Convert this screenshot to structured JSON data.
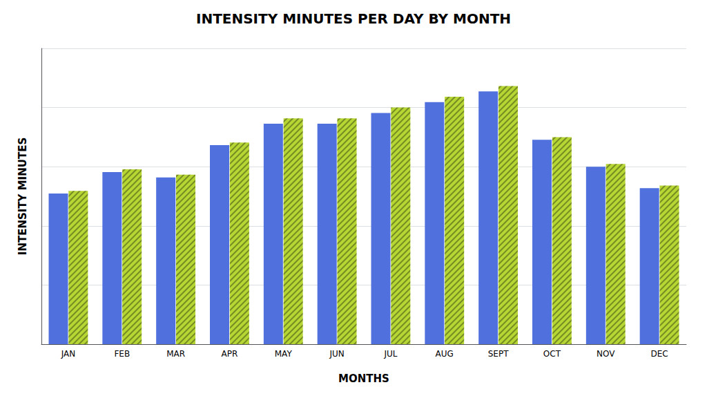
{
  "chart_data": {
    "type": "bar",
    "title": "INTENSITY MINUTES PER DAY BY MONTH",
    "xlabel": "MONTHS",
    "ylabel": "INTENSITY MINUTES",
    "categories": [
      "JAN",
      "FEB",
      "MAR",
      "APR",
      "MAY",
      "JUN",
      "JUL",
      "AUG",
      "SEPT",
      "OCT",
      "NOV",
      "DEC"
    ],
    "series": [
      {
        "values": [
          28,
          32,
          31,
          37,
          41,
          41,
          43,
          45,
          47,
          38,
          33,
          29
        ]
      },
      {
        "values": [
          28.5,
          32.5,
          31.5,
          37.5,
          42,
          42,
          44,
          46,
          48,
          38.5,
          33.5,
          29.5
        ]
      }
    ],
    "ylim": [
      0,
      55
    ],
    "yticks": [
      0,
      11,
      22,
      33,
      44,
      55
    ],
    "grid": true,
    "tick_labels": "x"
  }
}
